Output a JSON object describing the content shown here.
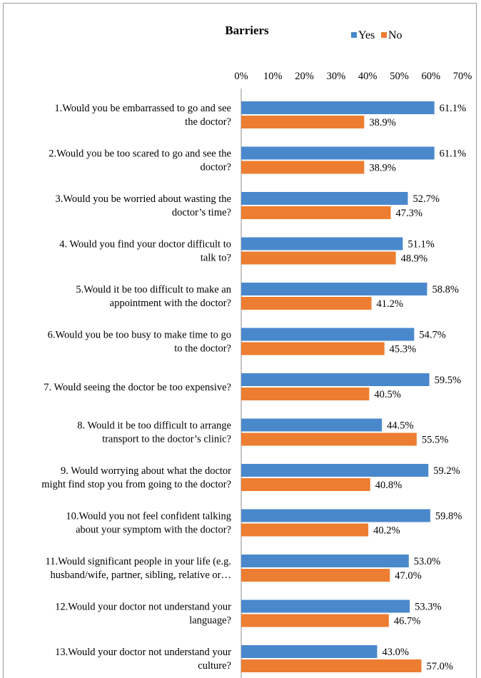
{
  "chart_data": {
    "type": "bar",
    "orientation": "horizontal",
    "title": "Barriers",
    "xlim": [
      0,
      70
    ],
    "x_tick_labels": [
      "0%",
      "10%",
      "20%",
      "30%",
      "40%",
      "50%",
      "60%",
      "70%"
    ],
    "legend_position": "top-right",
    "categories": [
      [
        "1.Would you be embarrassed to go and see",
        "the doctor?"
      ],
      [
        "2.Would you be too scared to go and see the",
        "doctor?"
      ],
      [
        "3.Would you be worried about wasting the",
        "doctor’s time?"
      ],
      [
        "4. Would you find your doctor difficult to",
        "talk to?"
      ],
      [
        "5.Would it be too difficult to make an",
        "appointment with the doctor?"
      ],
      [
        "6.Would you be too busy to make time to go",
        "to the doctor?"
      ],
      [
        "7. Would seeing the doctor be too expensive?"
      ],
      [
        "8. Would it be too difficult to arrange",
        "transport to the doctor’s clinic?"
      ],
      [
        "9. Would worrying about what the doctor",
        "might find stop you from going to the doctor?"
      ],
      [
        "10.Would you not feel confident talking",
        "about your symptom with the doctor?"
      ],
      [
        "11.Would significant people in your life (e.g.",
        "husband/wife, partner, sibling, relative or…"
      ],
      [
        "12.Would your doctor not understand your",
        "language?"
      ],
      [
        "13.Would your doctor not understand your",
        "culture?"
      ]
    ],
    "series": [
      {
        "name": "Yes",
        "color": "#4A88CC",
        "values": [
          61.1,
          61.1,
          52.7,
          51.1,
          58.8,
          54.7,
          59.5,
          44.5,
          59.2,
          59.8,
          53.0,
          53.3,
          43.0
        ],
        "labels": [
          "61.1%",
          "61.1%",
          "52.7%",
          "51.1%",
          "58.8%",
          "54.7%",
          "59.5%",
          "44.5%",
          "59.2%",
          "59.8%",
          "53.0%",
          "53.3%",
          "43.0%"
        ]
      },
      {
        "name": "No",
        "color": "#ED7D31",
        "values": [
          38.9,
          38.9,
          47.3,
          48.9,
          41.2,
          45.3,
          40.5,
          55.5,
          40.8,
          40.2,
          47.0,
          46.7,
          57.0
        ],
        "labels": [
          "38.9%",
          "38.9%",
          "47.3%",
          "48.9%",
          "41.2%",
          "45.3%",
          "40.5%",
          "55.5%",
          "40.8%",
          "40.2%",
          "47.0%",
          "46.7%",
          "57.0%"
        ]
      }
    ],
    "grid": false
  }
}
